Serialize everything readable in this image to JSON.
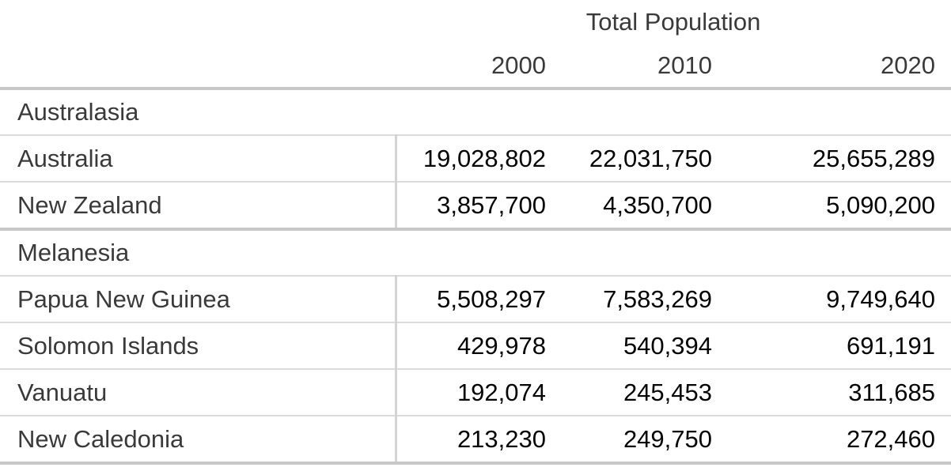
{
  "chart_data": {
    "type": "table",
    "title": "Total Population",
    "column_headers": [
      "2000",
      "2010",
      "2020"
    ],
    "groups": [
      {
        "name": "Australasia",
        "rows": [
          {
            "label": "Australia",
            "values": [
              "19,028,802",
              "22,031,750",
              "25,655,289"
            ]
          },
          {
            "label": "New Zealand",
            "values": [
              "3,857,700",
              "4,350,700",
              "5,090,200"
            ]
          }
        ]
      },
      {
        "name": "Melanesia",
        "rows": [
          {
            "label": "Papua New Guinea",
            "values": [
              "5,508,297",
              "7,583,269",
              "9,749,640"
            ]
          },
          {
            "label": "Solomon Islands",
            "values": [
              "429,978",
              "540,394",
              "691,191"
            ]
          },
          {
            "label": "Vanuatu",
            "values": [
              "192,074",
              "245,453",
              "311,685"
            ]
          },
          {
            "label": "New Caledonia",
            "values": [
              "213,230",
              "249,750",
              "272,460"
            ]
          }
        ]
      }
    ]
  },
  "colors": {
    "label_text": "#3a3a3a",
    "number_text": "#050505",
    "thin_border": "#dbdbdb",
    "thick_border": "#c8c8c8",
    "column_divider": "#d4d4d4",
    "background": "#ffffff"
  }
}
